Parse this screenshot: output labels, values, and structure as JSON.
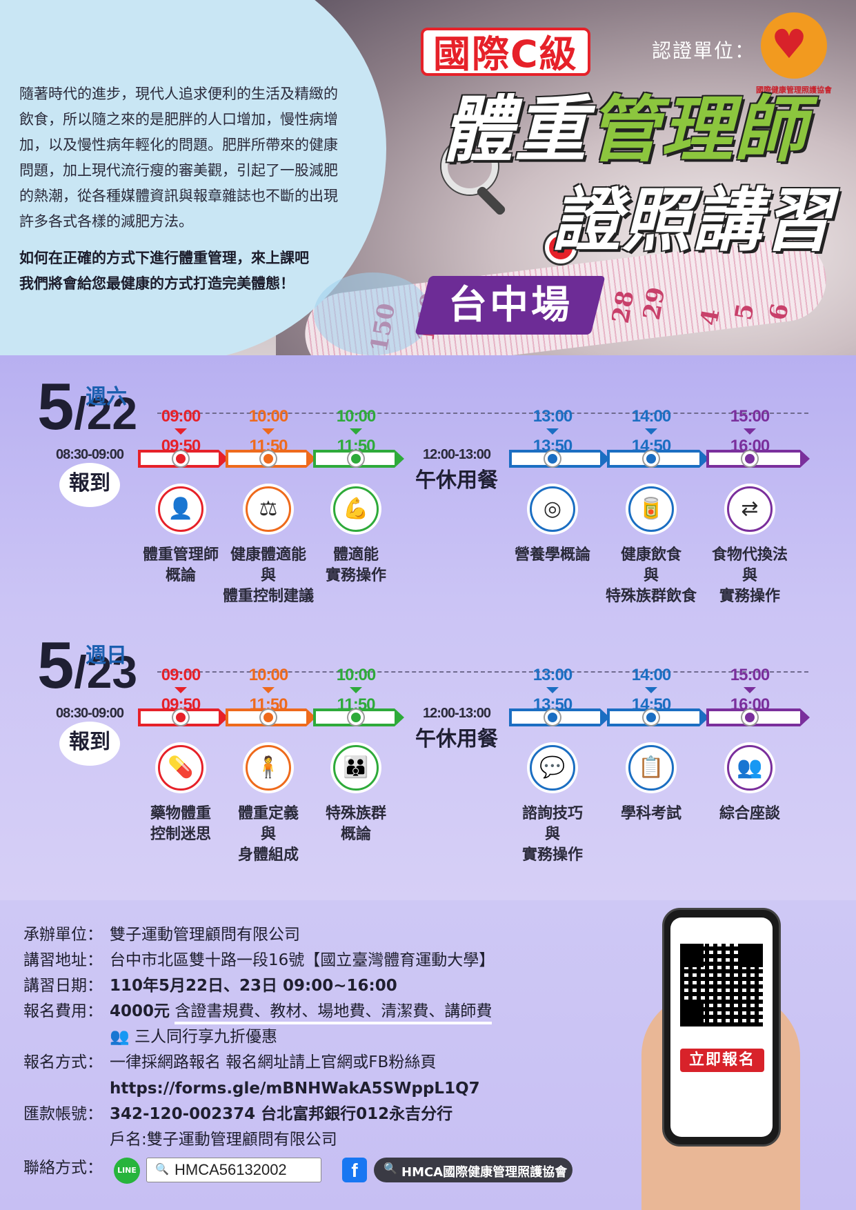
{
  "hero": {
    "intro": "隨著時代的進步，現代人追求便利的生活及精緻的飲食，所以隨之來的是肥胖的人口增加，慢性病增加，以及慢性病年輕化的問題。肥胖所帶來的健康問題，加上現代流行瘦的審美觀，引起了一股減肥的熱潮，從各種媒體資訊與報章雜誌也不斷的出現許多各式各樣的減肥方法。",
    "intro_bold_1": "如何在正確的方式下進行體重管理，來上課吧",
    "intro_bold_2": "我們將會給您最健康的方式打造完美體態！",
    "badge": "國際C級",
    "title_part1": "體重",
    "title_part2": "管理師",
    "title_line2": "證照講習",
    "venue": "台中場",
    "cert_label": "認證單位：",
    "org_logo_text": "國際健康管理照護協會",
    "tape_numbers": [
      "150",
      "140",
      "28",
      "29",
      "4",
      "5",
      "6"
    ]
  },
  "colors": {
    "red": "#e62129",
    "orange": "#ee6a1c",
    "green": "#2eaa3a",
    "blue": "#1b6ec2",
    "purple": "#7a2f9c",
    "accent_green": "#8cc63e",
    "venue_purple": "#6d2c96"
  },
  "days": [
    {
      "date": "5",
      "date_suffix": "/22",
      "weekday": "週六",
      "checkin_time": "08:30-09:00",
      "checkin_label": "報到",
      "lunch_time": "12:00-13:00",
      "lunch_label": "午休用餐",
      "sessions": [
        {
          "start": "09:00",
          "end": "09:50",
          "color": "#e62129",
          "icon": "person-tie-icon",
          "glyph": "👤",
          "topic": [
            "體重管理師",
            "概論"
          ]
        },
        {
          "start": "10:00",
          "end": "11:50",
          "color": "#ee6a1c",
          "icon": "scale-icon",
          "glyph": "⚖",
          "topic": [
            "健康體適能",
            "與",
            "體重控制建議"
          ]
        },
        {
          "start": "10:00",
          "end": "11:50",
          "color": "#2eaa3a",
          "icon": "muscle-plus-icon",
          "glyph": "💪",
          "topic": [
            "體適能",
            "實務操作"
          ]
        },
        {
          "start": "13:00",
          "end": "13:50",
          "color": "#1b6ec2",
          "icon": "plate-icon",
          "glyph": "◎",
          "topic": [
            "營養學概論"
          ]
        },
        {
          "start": "14:00",
          "end": "14:50",
          "color": "#1b6ec2",
          "icon": "food-jar-icon",
          "glyph": "🥫",
          "topic": [
            "健康飲食",
            "與",
            "特殊族群飲食"
          ]
        },
        {
          "start": "15:00",
          "end": "16:00",
          "color": "#7a2f9c",
          "icon": "exchange-icon",
          "glyph": "⇄",
          "topic": [
            "食物代換法",
            "與",
            "實務操作"
          ]
        }
      ]
    },
    {
      "date": "5",
      "date_suffix": "/23",
      "weekday": "週日",
      "checkin_time": "08:30-09:00",
      "checkin_label": "報到",
      "lunch_time": "12:00-13:00",
      "lunch_label": "午休用餐",
      "sessions": [
        {
          "start": "09:00",
          "end": "09:50",
          "color": "#e62129",
          "icon": "medicine-bottle-icon",
          "glyph": "💊",
          "topic": [
            "藥物體重",
            "控制迷思"
          ]
        },
        {
          "start": "10:00",
          "end": "11:50",
          "color": "#ee6a1c",
          "icon": "body-icon",
          "glyph": "🧍",
          "topic": [
            "體重定義",
            "與",
            "身體組成"
          ]
        },
        {
          "start": "10:00",
          "end": "11:50",
          "color": "#2eaa3a",
          "icon": "special-group-icon",
          "glyph": "👪",
          "topic": [
            "特殊族群",
            "概論"
          ]
        },
        {
          "start": "13:00",
          "end": "13:50",
          "color": "#1b6ec2",
          "icon": "chat-bubbles-icon",
          "glyph": "💬",
          "topic": [
            "諮詢技巧",
            "與",
            "實務操作"
          ]
        },
        {
          "start": "14:00",
          "end": "14:50",
          "color": "#1b6ec2",
          "icon": "checklist-icon",
          "glyph": "📋",
          "topic": [
            "學科考試"
          ]
        },
        {
          "start": "15:00",
          "end": "16:00",
          "color": "#7a2f9c",
          "icon": "group-discussion-icon",
          "glyph": "👥",
          "topic": [
            "綜合座談"
          ]
        }
      ]
    }
  ],
  "info": {
    "organizer_label": "承辦單位：",
    "organizer": "雙子運動管理顧問有限公司",
    "address_label": "講習地址：",
    "address": "台中市北區雙十路一段16號【國立臺灣體育運動大學】",
    "date_label": "講習日期：",
    "date": "110年5月22日、23日 09:00~16:00",
    "fee_label": "報名費用：",
    "fee": "4000元",
    "fee_note": "含證書規費、教材、場地費、清潔費、講師費",
    "group_discount": "三人同行享九折優惠",
    "method_label": "報名方式：",
    "method": "一律採網路報名 報名網址請上官網或FB粉絲頁",
    "url": "https://forms.gle/mBNHWakA5SWppL1Q7",
    "account_label": "匯款帳號：",
    "account": "342-120-002374 台北富邦銀行012永吉分行",
    "account_name": "戶名:雙子運動管理顧問有限公司",
    "contact_label": "聯絡方式：",
    "line_label": "LINE",
    "line_id": "HMCA56132002",
    "fb_label": "f",
    "fb_name": "HMCA國際健康管理照護協會",
    "register_button": "立即報名"
  }
}
